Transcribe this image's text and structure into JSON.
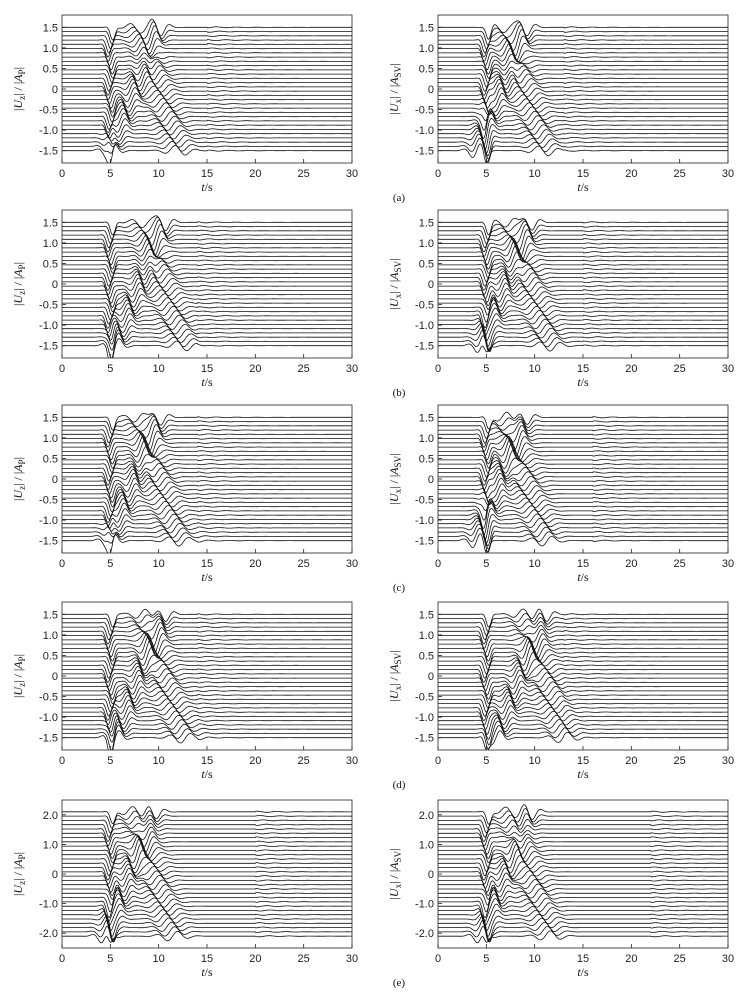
{
  "rows": [
    {
      "label": "(a)"
    },
    {
      "label": "(b)"
    },
    {
      "label": "(c)"
    },
    {
      "label": "(d)"
    },
    {
      "label": "(e)"
    }
  ],
  "chart_data": [
    {
      "type": "line",
      "subplot": "a-left",
      "xlabel": "t/s",
      "ylabel": "|Uz|/|AP|",
      "xlim": [
        0,
        30
      ],
      "ylim": [
        -1.8,
        1.8
      ],
      "xticks": [
        "0",
        "5",
        "10",
        "15",
        "20",
        "25",
        "30"
      ],
      "yticks": [
        {
          "v": 1.5,
          "t": "1.5"
        },
        {
          "v": 1.0,
          "t": "1.0"
        },
        {
          "v": 0.5,
          "t": "0.5"
        },
        {
          "v": 0,
          "t": "0"
        },
        {
          "v": -0.5,
          "t": "-0.5"
        },
        {
          "v": -1.0,
          "t": "-1.0"
        },
        {
          "v": -1.5,
          "t": "-1.5"
        }
      ],
      "traces": 30,
      "trace_start": -1.5,
      "trace_end": 1.5,
      "pulse_time": 5,
      "pulse_amp": 0.22,
      "wave_end": 15,
      "dark_center_time": 7.5
    },
    {
      "type": "line",
      "subplot": "a-right",
      "xlabel": "t/s",
      "ylabel": "|Ux|/|ASV|",
      "xlim": [
        0,
        30
      ],
      "ylim": [
        -1.8,
        1.8
      ],
      "xticks": [
        "0",
        "5",
        "10",
        "15",
        "20",
        "25",
        "30"
      ],
      "yticks": [
        {
          "v": 1.5,
          "t": "1.5"
        },
        {
          "v": 1.0,
          "t": "1.0"
        },
        {
          "v": 0.5,
          "t": "0.5"
        },
        {
          "v": 0,
          "t": "0"
        },
        {
          "v": -0.5,
          "t": "-0.5"
        },
        {
          "v": -1.0,
          "t": "-1.0"
        },
        {
          "v": -1.5,
          "t": "-1.5"
        }
      ],
      "traces": 30,
      "trace_start": -1.5,
      "trace_end": 1.5,
      "pulse_time": 5,
      "pulse_amp": 0.22,
      "wave_end": 13,
      "dark_center_time": 6.5
    },
    {
      "type": "line",
      "subplot": "b-left",
      "xlabel": "t/s",
      "ylabel": "|Uz|/|AP|",
      "xlim": [
        0,
        30
      ],
      "ylim": [
        -1.8,
        1.8
      ],
      "xticks": [
        "0",
        "5",
        "10",
        "15",
        "20",
        "25",
        "30"
      ],
      "yticks": [
        {
          "v": 1.5,
          "t": "1.5"
        },
        {
          "v": 1.0,
          "t": "1.0"
        },
        {
          "v": 0.5,
          "t": "0.5"
        },
        {
          "v": 0,
          "t": "0"
        },
        {
          "v": -0.5,
          "t": "-0.5"
        },
        {
          "v": -1.0,
          "t": "-1.0"
        },
        {
          "v": -1.5,
          "t": "-1.5"
        }
      ],
      "traces": 30,
      "trace_start": -1.5,
      "trace_end": 1.5,
      "pulse_time": 5,
      "pulse_amp": 0.22,
      "wave_end": 14,
      "dark_center_time": 8
    },
    {
      "type": "line",
      "subplot": "b-right",
      "xlabel": "t/s",
      "ylabel": "|Ux|/|ASV|",
      "xlim": [
        0,
        30
      ],
      "ylim": [
        -1.8,
        1.8
      ],
      "xticks": [
        "0",
        "5",
        "10",
        "15",
        "20",
        "25",
        "30"
      ],
      "yticks": [
        {
          "v": 1.5,
          "t": "1.5"
        },
        {
          "v": 1.0,
          "t": "1.0"
        },
        {
          "v": 0.5,
          "t": "0.5"
        },
        {
          "v": 0,
          "t": "0"
        },
        {
          "v": -0.5,
          "t": "-0.5"
        },
        {
          "v": -1.0,
          "t": "-1.0"
        },
        {
          "v": -1.5,
          "t": "-1.5"
        }
      ],
      "traces": 30,
      "trace_start": -1.5,
      "trace_end": 1.5,
      "pulse_time": 5,
      "pulse_amp": 0.22,
      "wave_end": 15,
      "dark_center_time": 7
    },
    {
      "type": "line",
      "subplot": "c-left",
      "xlabel": "t/s",
      "ylabel": "|Uz|/|AP|",
      "xlim": [
        0,
        30
      ],
      "ylim": [
        -1.8,
        1.8
      ],
      "xticks": [
        "0",
        "5",
        "10",
        "15",
        "20",
        "25",
        "30"
      ],
      "yticks": [
        {
          "v": 1.5,
          "t": "1.5"
        },
        {
          "v": 1.0,
          "t": "1.0"
        },
        {
          "v": 0.5,
          "t": "0.5"
        },
        {
          "v": 0,
          "t": "0"
        },
        {
          "v": -0.5,
          "t": "-0.5"
        },
        {
          "v": -1.0,
          "t": "-1.0"
        },
        {
          "v": -1.5,
          "t": "-1.5"
        }
      ],
      "traces": 30,
      "trace_start": -1.5,
      "trace_end": 1.5,
      "pulse_time": 5,
      "pulse_amp": 0.22,
      "wave_end": 14,
      "dark_center_time": 7.5
    },
    {
      "type": "line",
      "subplot": "c-right",
      "xlabel": "t/s",
      "ylabel": "|Ux|/|ASV|",
      "xlim": [
        0,
        30
      ],
      "ylim": [
        -1.8,
        1.8
      ],
      "xticks": [
        "0",
        "5",
        "10",
        "15",
        "20",
        "25",
        "30"
      ],
      "yticks": [
        {
          "v": 1.5,
          "t": "1.5"
        },
        {
          "v": 1.0,
          "t": "1.0"
        },
        {
          "v": 0.5,
          "t": "0.5"
        },
        {
          "v": 0,
          "t": "0"
        },
        {
          "v": -0.5,
          "t": "-0.5"
        },
        {
          "v": -1.0,
          "t": "-1.0"
        },
        {
          "v": -1.5,
          "t": "-1.5"
        }
      ],
      "traces": 30,
      "trace_start": -1.5,
      "trace_end": 1.5,
      "pulse_time": 5,
      "pulse_amp": 0.22,
      "wave_end": 16,
      "dark_center_time": 6.5
    },
    {
      "type": "line",
      "subplot": "d-left",
      "xlabel": "t/s",
      "ylabel": "|Uz|/|AP|",
      "xlim": [
        0,
        30
      ],
      "ylim": [
        -1.8,
        1.8
      ],
      "xticks": [
        "0",
        "5",
        "10",
        "15",
        "20",
        "25",
        "30"
      ],
      "yticks": [
        {
          "v": 1.5,
          "t": "1.5"
        },
        {
          "v": 1.0,
          "t": "1.0"
        },
        {
          "v": 0.5,
          "t": "0.5"
        },
        {
          "v": 0,
          "t": "0"
        },
        {
          "v": -0.5,
          "t": "-0.5"
        },
        {
          "v": -1.0,
          "t": "-1.0"
        },
        {
          "v": -1.5,
          "t": "-1.5"
        }
      ],
      "traces": 30,
      "trace_start": -1.5,
      "trace_end": 1.5,
      "pulse_time": 5,
      "pulse_amp": 0.22,
      "wave_end": 14,
      "dark_center_time": 8
    },
    {
      "type": "line",
      "subplot": "d-right",
      "xlabel": "t/s",
      "ylabel": "|Ux|/|ASV|",
      "xlim": [
        0,
        30
      ],
      "ylim": [
        -1.8,
        1.8
      ],
      "xticks": [
        "0",
        "5",
        "10",
        "15",
        "20",
        "25",
        "30"
      ],
      "yticks": [
        {
          "v": 1.5,
          "t": "1.5"
        },
        {
          "v": 1.0,
          "t": "1.0"
        },
        {
          "v": 0.5,
          "t": "0.5"
        },
        {
          "v": 0,
          "t": "0"
        },
        {
          "v": -0.5,
          "t": "-0.5"
        },
        {
          "v": -1.0,
          "t": "-1.0"
        },
        {
          "v": -1.5,
          "t": "-1.5"
        }
      ],
      "traces": 30,
      "trace_start": -1.5,
      "trace_end": 1.5,
      "pulse_time": 5,
      "pulse_amp": 0.22,
      "wave_end": 13,
      "dark_center_time": 8.5
    },
    {
      "type": "line",
      "subplot": "e-left",
      "xlabel": "t/s",
      "ylabel": "|Uz|/|AP|",
      "xlim": [
        0,
        30
      ],
      "ylim": [
        -2.5,
        2.5
      ],
      "xticks": [
        "0",
        "5",
        "10",
        "15",
        "20",
        "25",
        "30"
      ],
      "yticks": [
        {
          "v": 2.0,
          "t": "2.0"
        },
        {
          "v": 1.0,
          "t": "1.0"
        },
        {
          "v": 0,
          "t": "0"
        },
        {
          "v": -1.0,
          "t": "-1.0"
        },
        {
          "v": -2.0,
          "t": "-2.0"
        }
      ],
      "traces": 30,
      "trace_start": -2.1,
      "trace_end": 2.1,
      "pulse_time": 5,
      "pulse_amp": 0.3,
      "wave_end": 20,
      "dark_center_time": 7
    },
    {
      "type": "line",
      "subplot": "e-right",
      "xlabel": "t/s",
      "ylabel": "|Ux|/|ASV|",
      "xlim": [
        0,
        30
      ],
      "ylim": [
        -2.5,
        2.5
      ],
      "xticks": [
        "0",
        "5",
        "10",
        "15",
        "20",
        "25",
        "30"
      ],
      "yticks": [
        {
          "v": 2.0,
          "t": "2.0"
        },
        {
          "v": 1.0,
          "t": "1.0"
        },
        {
          "v": 0,
          "t": "0"
        },
        {
          "v": -1.0,
          "t": "-1.0"
        },
        {
          "v": -2.0,
          "t": "-2.0"
        }
      ],
      "traces": 30,
      "trace_start": -2.1,
      "trace_end": 2.1,
      "pulse_time": 5,
      "pulse_amp": 0.3,
      "wave_end": 22,
      "dark_center_time": 7
    }
  ]
}
